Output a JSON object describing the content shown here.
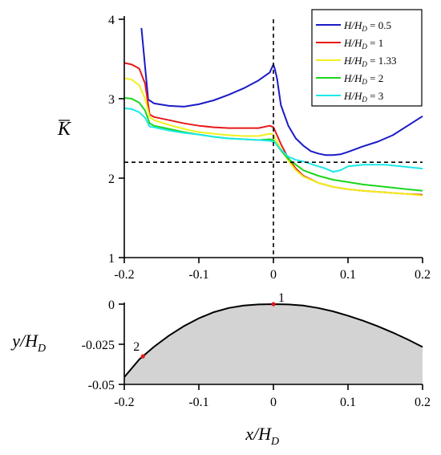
{
  "chart_data": [
    {
      "type": "line",
      "ylabel": "K̄",
      "xlim": [
        -0.2,
        0.2
      ],
      "ylim": [
        1,
        4
      ],
      "x_ticks": [
        "-0.2",
        "-0.1",
        "0",
        "0.1",
        "0.2"
      ],
      "y_ticks": [
        "1",
        "2",
        "3",
        "4"
      ],
      "reference_lines": {
        "horizontal_y": 2.2,
        "vertical_x": 0
      },
      "legend": {
        "placement": "top-right",
        "entries": [
          "H/HD = 0.5",
          "H/HD = 1",
          "H/HD = 1.33",
          "H/HD = 2",
          "H/HD = 3"
        ]
      },
      "series": [
        {
          "name": "H/HD = 0.5",
          "color": "#1a1ac8",
          "x": [
            -0.177,
            -0.168,
            -0.16,
            -0.14,
            -0.12,
            -0.1,
            -0.08,
            -0.06,
            -0.04,
            -0.02,
            -0.005,
            0,
            0.002,
            0.005,
            0.01,
            0.02,
            0.03,
            0.04,
            0.05,
            0.06,
            0.07,
            0.08,
            0.09,
            0.1,
            0.12,
            0.14,
            0.16,
            0.18,
            0.2
          ],
          "y": [
            3.89,
            2.99,
            2.94,
            2.91,
            2.9,
            2.93,
            2.98,
            3.05,
            3.13,
            3.23,
            3.33,
            3.43,
            3.37,
            3.25,
            2.92,
            2.66,
            2.5,
            2.41,
            2.34,
            2.31,
            2.29,
            2.29,
            2.3,
            2.33,
            2.4,
            2.46,
            2.54,
            2.66,
            2.78
          ]
        },
        {
          "name": "H/HD = 1",
          "color": "#e81818",
          "x": [
            -0.2,
            -0.19,
            -0.18,
            -0.172,
            -0.166,
            -0.16,
            -0.14,
            -0.12,
            -0.1,
            -0.08,
            -0.06,
            -0.04,
            -0.02,
            -0.005,
            0,
            0.002,
            0.01,
            0.02,
            0.03,
            0.04,
            0.06,
            0.08,
            0.1,
            0.12,
            0.15,
            0.18,
            0.2
          ],
          "y": [
            3.45,
            3.43,
            3.38,
            3.19,
            2.8,
            2.77,
            2.73,
            2.69,
            2.66,
            2.64,
            2.63,
            2.63,
            2.63,
            2.66,
            2.64,
            2.6,
            2.43,
            2.25,
            2.12,
            2.03,
            1.94,
            1.89,
            1.86,
            1.84,
            1.82,
            1.8,
            1.79
          ]
        },
        {
          "name": "H/HD = 1.33",
          "color": "#f0f01c",
          "x": [
            -0.2,
            -0.19,
            -0.18,
            -0.172,
            -0.166,
            -0.16,
            -0.14,
            -0.12,
            -0.1,
            -0.08,
            -0.06,
            -0.04,
            -0.02,
            -0.005,
            0,
            0.002,
            0.01,
            0.02,
            0.03,
            0.04,
            0.06,
            0.08,
            0.1,
            0.12,
            0.15,
            0.18,
            0.2
          ],
          "y": [
            3.26,
            3.24,
            3.17,
            3.0,
            2.77,
            2.73,
            2.67,
            2.62,
            2.58,
            2.56,
            2.54,
            2.53,
            2.53,
            2.56,
            2.55,
            2.5,
            2.37,
            2.22,
            2.1,
            2.02,
            1.94,
            1.89,
            1.86,
            1.84,
            1.82,
            1.8,
            1.78
          ]
        },
        {
          "name": "H/HD = 2",
          "color": "#1cd61c",
          "x": [
            -0.2,
            -0.19,
            -0.18,
            -0.172,
            -0.166,
            -0.16,
            -0.14,
            -0.12,
            -0.1,
            -0.08,
            -0.06,
            -0.04,
            -0.02,
            -0.005,
            0,
            0.002,
            0.01,
            0.02,
            0.03,
            0.04,
            0.06,
            0.08,
            0.1,
            0.12,
            0.15,
            0.18,
            0.2
          ],
          "y": [
            3.01,
            3.0,
            2.95,
            2.85,
            2.69,
            2.66,
            2.62,
            2.58,
            2.55,
            2.52,
            2.5,
            2.49,
            2.48,
            2.49,
            2.48,
            2.45,
            2.35,
            2.24,
            2.17,
            2.1,
            2.03,
            1.98,
            1.95,
            1.92,
            1.89,
            1.86,
            1.84
          ]
        },
        {
          "name": "H/HD = 3",
          "color": "#1ce8e8",
          "x": [
            -0.2,
            -0.19,
            -0.18,
            -0.172,
            -0.166,
            -0.16,
            -0.14,
            -0.12,
            -0.1,
            -0.08,
            -0.06,
            -0.04,
            -0.02,
            -0.005,
            0,
            0.002,
            0.01,
            0.02,
            0.03,
            0.04,
            0.05,
            0.06,
            0.07,
            0.08,
            0.09,
            0.1,
            0.12,
            0.15,
            0.18,
            0.2
          ],
          "y": [
            2.88,
            2.87,
            2.83,
            2.76,
            2.65,
            2.64,
            2.6,
            2.57,
            2.55,
            2.52,
            2.5,
            2.49,
            2.48,
            2.47,
            2.46,
            2.45,
            2.36,
            2.27,
            2.23,
            2.21,
            2.18,
            2.15,
            2.12,
            2.08,
            2.1,
            2.15,
            2.17,
            2.17,
            2.14,
            2.12
          ]
        }
      ]
    },
    {
      "type": "area",
      "xlabel": "x/HD",
      "ylabel": "y/HD",
      "xlim": [
        -0.2,
        0.2
      ],
      "ylim": [
        -0.05,
        0
      ],
      "x_ticks": [
        "-0.2",
        "-0.1",
        "0",
        "0.1",
        "0.2"
      ],
      "y_ticks": [
        "0",
        "-0.025",
        "-0.05"
      ],
      "fill_color": "#d3d3d3",
      "series": [
        {
          "x": [
            -0.2,
            -0.18,
            -0.16,
            -0.14,
            -0.12,
            -0.1,
            -0.08,
            -0.06,
            -0.04,
            -0.02,
            0,
            0.02,
            0.04,
            0.06,
            0.08,
            0.1,
            0.12,
            0.14,
            0.16,
            0.18,
            0.2
          ],
          "y": [
            -0.0455,
            -0.0345,
            -0.0265,
            -0.0196,
            -0.0137,
            -0.0088,
            -0.005,
            -0.0024,
            -0.0009,
            -0.0002,
            0,
            -0.0002,
            -0.0009,
            -0.0024,
            -0.0045,
            -0.0072,
            -0.0103,
            -0.0138,
            -0.0177,
            -0.022,
            -0.0267
          ]
        }
      ],
      "points": [
        {
          "label": "1",
          "x": 0,
          "y": 0,
          "color": "#e81818"
        },
        {
          "label": "2",
          "x": -0.175,
          "y": -0.0325,
          "color": "#e81818"
        }
      ]
    }
  ]
}
